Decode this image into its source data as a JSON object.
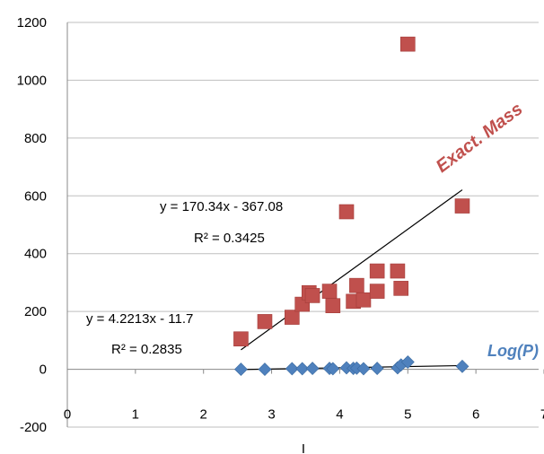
{
  "chart_data": {
    "type": "scatter",
    "xlabel": "I",
    "ylabel": "",
    "xlim": [
      0,
      7
    ],
    "ylim": [
      -200,
      1200
    ],
    "x_ticks": [
      0,
      1,
      2,
      3,
      4,
      5,
      6,
      7
    ],
    "y_ticks": [
      -200,
      0,
      200,
      400,
      600,
      800,
      1000,
      1200
    ],
    "grid": "horizontal",
    "legend": "none",
    "series": [
      {
        "name": "Exact. Mass",
        "marker": "square",
        "color": "#c0504d",
        "points": [
          {
            "x": 2.55,
            "y": 105
          },
          {
            "x": 2.9,
            "y": 165
          },
          {
            "x": 3.3,
            "y": 180
          },
          {
            "x": 3.45,
            "y": 225
          },
          {
            "x": 3.55,
            "y": 265
          },
          {
            "x": 3.6,
            "y": 255
          },
          {
            "x": 3.85,
            "y": 270
          },
          {
            "x": 3.9,
            "y": 220
          },
          {
            "x": 4.1,
            "y": 545
          },
          {
            "x": 4.2,
            "y": 235
          },
          {
            "x": 4.25,
            "y": 290
          },
          {
            "x": 4.35,
            "y": 240
          },
          {
            "x": 4.55,
            "y": 340
          },
          {
            "x": 4.55,
            "y": 270
          },
          {
            "x": 4.85,
            "y": 340
          },
          {
            "x": 4.9,
            "y": 280
          },
          {
            "x": 5.0,
            "y": 1125
          },
          {
            "x": 5.8,
            "y": 565
          }
        ],
        "trendline": {
          "slope": 170.34,
          "intercept": -367.08,
          "x_range": [
            2.55,
            5.8
          ]
        },
        "equation": "y = 170.34x - 367.08",
        "r2": "R² = 0.3425",
        "label_color": "#c0504d"
      },
      {
        "name": "Log(P)",
        "marker": "diamond",
        "color": "#4f81bd",
        "points": [
          {
            "x": 2.55,
            "y": 0
          },
          {
            "x": 2.9,
            "y": 0
          },
          {
            "x": 3.3,
            "y": 2
          },
          {
            "x": 3.45,
            "y": 2
          },
          {
            "x": 3.6,
            "y": 3
          },
          {
            "x": 3.85,
            "y": 3
          },
          {
            "x": 3.9,
            "y": 2
          },
          {
            "x": 4.1,
            "y": 5
          },
          {
            "x": 4.2,
            "y": 3
          },
          {
            "x": 4.25,
            "y": 4
          },
          {
            "x": 4.35,
            "y": 2
          },
          {
            "x": 4.55,
            "y": 3
          },
          {
            "x": 4.85,
            "y": 5
          },
          {
            "x": 4.9,
            "y": 15
          },
          {
            "x": 5.0,
            "y": 25
          },
          {
            "x": 5.8,
            "y": 10
          }
        ],
        "trendline": {
          "slope": 4.2213,
          "intercept": -11.7,
          "x_range": [
            2.55,
            5.8
          ]
        },
        "equation": "y = 4.2213x - 11.7",
        "r2": "R² = 0.2835",
        "label_color": "#4f81bd"
      }
    ]
  }
}
